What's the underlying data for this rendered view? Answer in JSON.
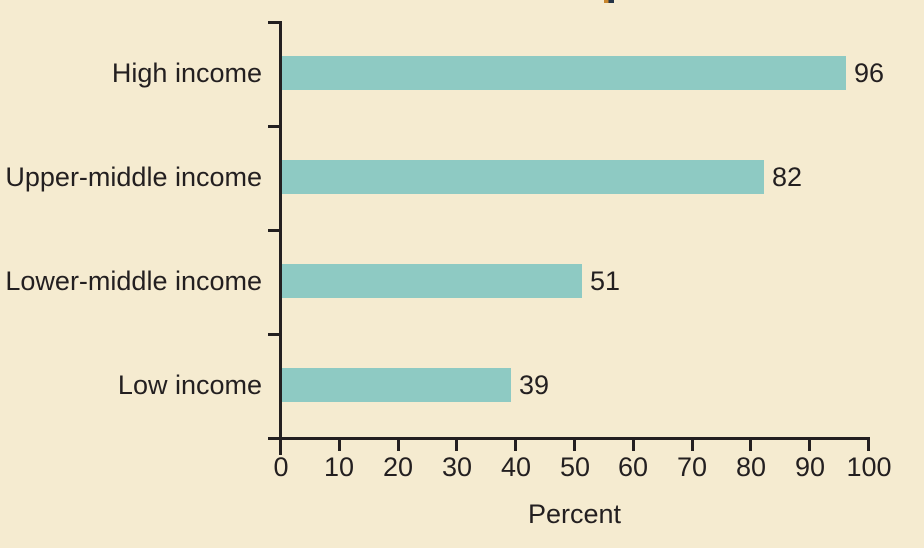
{
  "figure": {
    "background_color": "#f5ebd0",
    "bar_color": "#8ecac3",
    "text_color": "#231f20",
    "axis_color": "#231f20"
  },
  "chart_data": {
    "type": "bar",
    "orientation": "horizontal",
    "categories": [
      "High income",
      "Upper-middle income",
      "Lower-middle income",
      "Low income"
    ],
    "values": [
      96,
      82,
      51,
      39
    ],
    "value_labels": [
      "96",
      "82",
      "51",
      "39"
    ],
    "xlabel": "Percent",
    "xlim": [
      0,
      100
    ],
    "xticks": [
      0,
      10,
      20,
      30,
      40,
      50,
      60,
      70,
      80,
      90,
      100
    ],
    "grid": false,
    "legend": false
  }
}
